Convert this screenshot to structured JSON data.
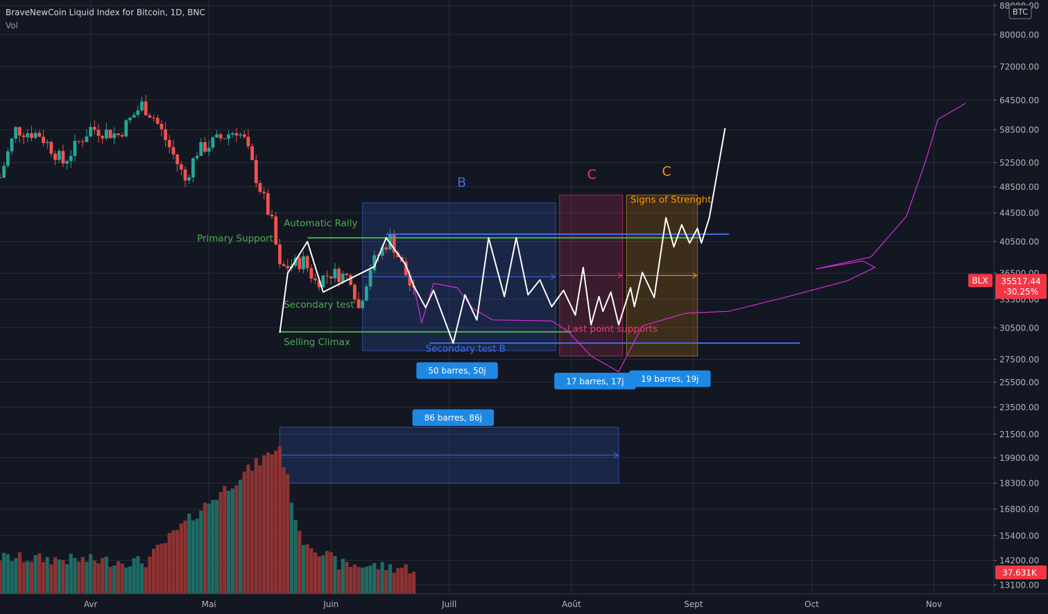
{
  "header": {
    "title": "BraveNewCoin Liquid Index for Bitcoin, 1D, BNC",
    "volume_label": "Vol"
  },
  "currency_badge": "BTC",
  "colors": {
    "background": "#131722",
    "grid": "#2a2e39",
    "up": "#26a69a",
    "down": "#ef5350",
    "vol_up": "#1e6b64",
    "vol_down": "#8c3333",
    "zone_b": "#1e88e5",
    "zone_c_red": "#ef3a6a",
    "zone_c_orange": "#ff9800",
    "green_line": "#4caf50",
    "blue_line": "#3f6ee8",
    "projection": "#ffffff",
    "magenta": "#d62fd6",
    "price_tag": "#f23645"
  },
  "chart_data": {
    "type": "candlestick",
    "symbol": "BLX",
    "interval": "1D",
    "x_ticks": [
      "Avr",
      "Mai",
      "Juin",
      "Juill",
      "Août",
      "Sept",
      "Oct",
      "Nov"
    ],
    "y_ticks": [
      "88000.00",
      "80000.00",
      "72000.00",
      "64500.00",
      "58500.00",
      "52500.00",
      "48500.00",
      "44500.00",
      "40500.00",
      "36500.00",
      "33500.00",
      "30500.00",
      "27500.00",
      "25500.00",
      "23500.00",
      "21500.00",
      "19900.00",
      "18300.00",
      "16800.00",
      "15400.00",
      "14200.00",
      "13100.00"
    ],
    "price_scale": "log",
    "y_range": [
      12600,
      88000
    ],
    "date_range": [
      "2021-03-09",
      "2021-11-09"
    ],
    "last_price": {
      "symbol": "BLX",
      "value": "35517.44",
      "change": "-30.25%"
    },
    "last_volume": "37.631K",
    "price_anchors": [
      {
        "date": "2021-03-09",
        "close": 50000
      },
      {
        "date": "2021-03-13",
        "close": 58500
      },
      {
        "date": "2021-03-19",
        "close": 57600
      },
      {
        "date": "2021-03-25",
        "close": 52500
      },
      {
        "date": "2021-04-01",
        "close": 58800
      },
      {
        "date": "2021-04-08",
        "close": 57500
      },
      {
        "date": "2021-04-14",
        "close": 63500
      },
      {
        "date": "2021-04-17",
        "close": 61000
      },
      {
        "date": "2021-04-25",
        "close": 49500
      },
      {
        "date": "2021-04-28",
        "close": 54500
      },
      {
        "date": "2021-05-03",
        "close": 56500
      },
      {
        "date": "2021-05-08",
        "close": 58500
      },
      {
        "date": "2021-05-10",
        "close": 56500
      },
      {
        "date": "2021-05-13",
        "close": 50000
      },
      {
        "date": "2021-05-17",
        "close": 43000
      },
      {
        "date": "2021-05-19",
        "close": 37000
      },
      {
        "date": "2021-05-22",
        "close": 37500
      },
      {
        "date": "2021-05-25",
        "close": 38000
      },
      {
        "date": "2021-05-28",
        "close": 35500
      },
      {
        "date": "2021-06-01",
        "close": 36500
      },
      {
        "date": "2021-06-06",
        "close": 36000
      },
      {
        "date": "2021-06-08",
        "close": 32500
      },
      {
        "date": "2021-06-11",
        "close": 37200
      },
      {
        "date": "2021-06-14",
        "close": 39500
      },
      {
        "date": "2021-06-16",
        "close": 41000
      },
      {
        "date": "2021-06-19",
        "close": 37500
      },
      {
        "date": "2021-06-22",
        "close": 34000
      }
    ],
    "volume_anchors": [
      {
        "date": "2021-03-09",
        "value": 14600
      },
      {
        "date": "2021-04-15",
        "value": 14400
      },
      {
        "date": "2021-05-19",
        "value": 20800
      },
      {
        "date": "2021-05-24",
        "value": 15600
      },
      {
        "date": "2021-06-03",
        "value": 14300
      },
      {
        "date": "2021-06-22",
        "value": 14100
      }
    ],
    "projection_path": [
      {
        "date": "2021-05-19",
        "price": 30000
      },
      {
        "date": "2021-05-21",
        "price": 36500
      },
      {
        "date": "2021-05-26",
        "price": 40500
      },
      {
        "date": "2021-05-30",
        "price": 34300
      },
      {
        "date": "2021-06-12",
        "price": 37300
      },
      {
        "date": "2021-06-15",
        "price": 41000
      },
      {
        "date": "2021-06-20",
        "price": 37500
      },
      {
        "date": "2021-06-22",
        "price": 35000
      },
      {
        "date": "2021-06-25",
        "price": 32600
      },
      {
        "date": "2021-06-27",
        "price": 34500
      },
      {
        "date": "2021-07-02",
        "price": 29000
      },
      {
        "date": "2021-07-05",
        "price": 34000
      },
      {
        "date": "2021-07-08",
        "price": 31300
      },
      {
        "date": "2021-07-11",
        "price": 41000
      },
      {
        "date": "2021-07-15",
        "price": 33800
      },
      {
        "date": "2021-07-18",
        "price": 41000
      },
      {
        "date": "2021-07-21",
        "price": 34000
      },
      {
        "date": "2021-07-24",
        "price": 35700
      },
      {
        "date": "2021-07-27",
        "price": 32700
      },
      {
        "date": "2021-07-30",
        "price": 34500
      },
      {
        "date": "2021-08-02",
        "price": 31800
      },
      {
        "date": "2021-08-04",
        "price": 37200
      },
      {
        "date": "2021-08-06",
        "price": 30800
      },
      {
        "date": "2021-08-08",
        "price": 33800
      },
      {
        "date": "2021-08-09",
        "price": 32200
      },
      {
        "date": "2021-08-11",
        "price": 34300
      },
      {
        "date": "2021-08-13",
        "price": 30800
      },
      {
        "date": "2021-08-16",
        "price": 34800
      },
      {
        "date": "2021-08-17",
        "price": 32700
      },
      {
        "date": "2021-08-19",
        "price": 36600
      },
      {
        "date": "2021-08-22",
        "price": 33700
      },
      {
        "date": "2021-08-25",
        "price": 43800
      },
      {
        "date": "2021-08-27",
        "price": 39800
      },
      {
        "date": "2021-08-29",
        "price": 42800
      },
      {
        "date": "2021-08-31",
        "price": 40300
      },
      {
        "date": "2021-09-02",
        "price": 42300
      },
      {
        "date": "2021-09-03",
        "price": 40300
      },
      {
        "date": "2021-09-05",
        "price": 43800
      },
      {
        "date": "2021-09-09",
        "price": 58800
      }
    ],
    "horizontal_lines": [
      {
        "from": "2021-05-26",
        "to": "2021-09-03",
        "price": 41000,
        "color": "green"
      },
      {
        "from": "2021-05-19",
        "to": "2021-08-01",
        "price": 30100,
        "color": "green"
      },
      {
        "from": "2021-06-15",
        "to": "2021-09-10",
        "price": 41500,
        "color": "blue"
      },
      {
        "from": "2021-06-26",
        "to": "2021-09-28",
        "price": 29000,
        "color": "blue"
      }
    ],
    "range_zones": [
      {
        "label": "B",
        "from": "2021-06-09",
        "to": "2021-07-28",
        "high": 46000,
        "low": 28300,
        "color": "blue"
      },
      {
        "label": "C",
        "from": "2021-07-29",
        "to": "2021-08-14",
        "high": 47200,
        "low": 27800,
        "color": "red"
      },
      {
        "label": "C",
        "from": "2021-08-15",
        "to": "2021-09-02",
        "high": 47200,
        "low": 27800,
        "color": "orange"
      },
      {
        "label": "",
        "from": "2021-05-19",
        "to": "2021-08-13",
        "high": 22000,
        "low": 18300,
        "color": "blue"
      }
    ],
    "magenta_curve": [
      {
        "date": "2021-06-22",
        "price": 35000
      },
      {
        "date": "2021-06-24",
        "price": 31000
      },
      {
        "date": "2021-06-27",
        "price": 35300
      },
      {
        "date": "2021-07-03",
        "price": 34800
      },
      {
        "date": "2021-07-07",
        "price": 32500
      },
      {
        "date": "2021-07-12",
        "price": 31300
      },
      {
        "date": "2021-07-27",
        "price": 31200
      },
      {
        "date": "2021-07-31",
        "price": 30200
      },
      {
        "date": "2021-08-06",
        "price": 27800
      },
      {
        "date": "2021-08-13",
        "price": 26400
      },
      {
        "date": "2021-08-19",
        "price": 30700
      },
      {
        "date": "2021-08-30",
        "price": 32000
      },
      {
        "date": "2021-09-10",
        "price": 32200
      },
      {
        "date": "2021-09-25",
        "price": 33800
      },
      {
        "date": "2021-10-10",
        "price": 35600
      },
      {
        "date": "2021-10-17",
        "price": 37200
      },
      {
        "date": "2021-10-14",
        "price": 38000
      },
      {
        "date": "2021-10-02",
        "price": 37000
      },
      {
        "date": "2021-10-16",
        "price": 38500
      },
      {
        "date": "2021-10-25",
        "price": 44000
      },
      {
        "date": "2021-10-30",
        "price": 53000
      },
      {
        "date": "2021-11-02",
        "price": 60500
      },
      {
        "date": "2021-11-09",
        "price": 63800
      }
    ],
    "annotations": [
      {
        "text": "Primary Support",
        "date": "2021-04-28",
        "price": 40500,
        "color": "green"
      },
      {
        "text": "Automatic Rally",
        "date": "2021-05-20",
        "price": 42600,
        "color": "green"
      },
      {
        "text": "Secondary test",
        "date": "2021-05-20",
        "price": 32600,
        "color": "green"
      },
      {
        "text": "Selling Climax",
        "date": "2021-05-20",
        "price": 28800,
        "color": "green"
      },
      {
        "text": "Secondary test B",
        "date": "2021-06-25",
        "price": 28200,
        "color": "blue"
      },
      {
        "text": "Last point supports",
        "date": "2021-07-31",
        "price": 30100,
        "color": "red"
      },
      {
        "text": "Signs of Strenght",
        "date": "2021-08-16",
        "price": 46000,
        "color": "orange"
      },
      {
        "text": "B",
        "date": "2021-07-03",
        "price": 48500,
        "color": "blue"
      },
      {
        "text": "C",
        "date": "2021-08-05",
        "price": 49800,
        "color": "red"
      },
      {
        "text": "C",
        "date": "2021-08-24",
        "price": 50300,
        "color": "orange"
      }
    ],
    "range_labels": [
      {
        "text": "50 barres, 50j",
        "date": "2021-07-03",
        "price": 26500
      },
      {
        "text": "17 barres, 17j",
        "date": "2021-08-07",
        "price": 25600
      },
      {
        "text": "19 barres, 19j",
        "date": "2021-08-26",
        "price": 25800
      },
      {
        "text": "86 barres, 86j",
        "date": "2021-07-02",
        "price": 22700
      }
    ]
  }
}
